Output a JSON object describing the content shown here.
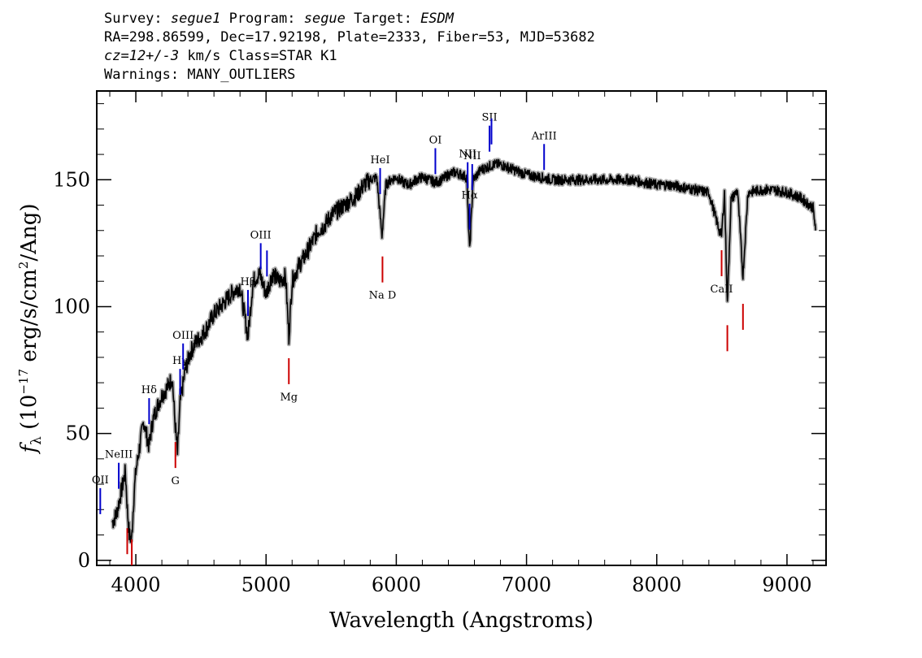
{
  "header": {
    "row1": {
      "survey_label": "Survey:",
      "survey": "segue1",
      "program_label": "Program:",
      "program": "segue",
      "target_label": "Target:",
      "target": "ESDM"
    },
    "row2": "RA=298.86599, Dec=17.92198, Plate=2333, Fiber=53, MJD=53682",
    "row3": {
      "cz": "cz=12+/-3",
      "rest": " km/s Class=STAR K1"
    },
    "row4": "Warnings: MANY_OUTLIERS"
  },
  "colors": {
    "spectrum": "#000000",
    "error_band": "#b0b0b0",
    "emission": "#0000cc",
    "absorption": "#cc0000"
  },
  "chart_data": {
    "type": "line",
    "xlabel": "Wavelength (Angstroms)",
    "ylabel_parts": {
      "f": "f",
      "lambda": "λ",
      "open": " (10",
      "exp": "−17",
      "mid": " erg/s/cm",
      "sq": "2",
      "close": "/Ang)"
    },
    "xlim": [
      3700,
      9300
    ],
    "ylim": [
      -2,
      185
    ],
    "x_ticks": [
      4000,
      5000,
      6000,
      7000,
      8000,
      9000
    ],
    "x_tick_labels": [
      "4000",
      "5000",
      "6000",
      "7000",
      "8000",
      "9000"
    ],
    "y_ticks": [
      0,
      50,
      100,
      150
    ],
    "y_tick_labels": [
      "0",
      "50",
      "100",
      "150"
    ],
    "spectrum": {
      "name": "",
      "x": [
        3820,
        3850,
        3880,
        3900,
        3920,
        3935,
        3950,
        3968,
        3985,
        4000,
        4030,
        4060,
        4101,
        4130,
        4160,
        4200,
        4240,
        4280,
        4300,
        4320,
        4340,
        4380,
        4420,
        4460,
        4500,
        4550,
        4600,
        4650,
        4700,
        4750,
        4800,
        4861,
        4900,
        4950,
        5000,
        5050,
        5100,
        5150,
        5175,
        5200,
        5250,
        5300,
        5350,
        5400,
        5450,
        5500,
        5550,
        5600,
        5650,
        5700,
        5750,
        5800,
        5850,
        5890,
        5920,
        5960,
        6000,
        6050,
        6100,
        6150,
        6200,
        6250,
        6300,
        6350,
        6400,
        6450,
        6500,
        6540,
        6563,
        6590,
        6650,
        6700,
        6750,
        6800,
        6850,
        6900,
        6950,
        7000,
        7100,
        7200,
        7300,
        7400,
        7500,
        7600,
        7700,
        7800,
        7900,
        8000,
        8100,
        8200,
        8300,
        8400,
        8480,
        8498,
        8520,
        8542,
        8570,
        8620,
        8662,
        8700,
        8800,
        8900,
        9000,
        9100,
        9150,
        9200,
        9220
      ],
      "y": [
        15,
        18,
        25,
        30,
        35,
        20,
        10,
        8,
        25,
        35,
        45,
        55,
        45,
        55,
        60,
        65,
        68,
        72,
        55,
        42,
        62,
        75,
        82,
        86,
        88,
        92,
        97,
        100,
        103,
        106,
        108,
        88,
        110,
        113,
        105,
        113,
        110,
        112,
        88,
        110,
        116,
        120,
        125,
        130,
        132,
        136,
        138,
        140,
        142,
        144,
        148,
        150,
        151,
        128,
        148,
        150,
        151,
        149,
        148,
        150,
        151,
        150,
        149,
        150,
        152,
        153,
        152,
        151,
        122,
        150,
        154,
        155,
        156,
        156,
        155,
        154,
        153,
        152,
        151,
        150,
        150,
        150,
        150,
        150,
        150,
        150,
        149,
        148,
        148,
        147,
        146,
        145,
        130,
        128,
        145,
        101,
        142,
        146,
        112,
        145,
        146,
        146,
        145,
        143,
        141,
        139,
        130
      ]
    },
    "lines": [
      {
        "label": "OII",
        "x": 3727,
        "kind": "emission"
      },
      {
        "label": "NeIII",
        "x": 3869,
        "kind": "emission"
      },
      {
        "label": "Hδ",
        "x": 4102,
        "kind": "emission"
      },
      {
        "label": "Hγ",
        "x": 4340,
        "kind": "emission"
      },
      {
        "label": "OIII",
        "x": 4363,
        "kind": "emission"
      },
      {
        "label": "Hβ",
        "x": 4861,
        "kind": "emission"
      },
      {
        "label": "OIII",
        "x": 4959,
        "kind": "emission"
      },
      {
        "label": "",
        "x": 5007,
        "kind": "emission"
      },
      {
        "label": "HeI",
        "x": 5876,
        "kind": "emission"
      },
      {
        "label": "OI",
        "x": 6300,
        "kind": "emission"
      },
      {
        "label": "NII",
        "x": 6548,
        "kind": "emission"
      },
      {
        "label": "Hα",
        "x": 6563,
        "kind": "emission"
      },
      {
        "label": "NII",
        "x": 6583,
        "kind": "emission"
      },
      {
        "label": "SII",
        "x": 6716,
        "kind": "emission"
      },
      {
        "label": "",
        "x": 6731,
        "kind": "emission"
      },
      {
        "label": "ArIII",
        "x": 7135,
        "kind": "emission"
      },
      {
        "label": "",
        "x": 3934,
        "kind": "absorption"
      },
      {
        "label": "",
        "x": 3969,
        "kind": "absorption"
      },
      {
        "label": "G",
        "x": 4304,
        "kind": "absorption"
      },
      {
        "label": "Mg",
        "x": 5175,
        "kind": "absorption"
      },
      {
        "label": "Na D",
        "x": 5894,
        "kind": "absorption"
      },
      {
        "label": "CaII",
        "x": 8498,
        "kind": "absorption"
      },
      {
        "label": "",
        "x": 8542,
        "kind": "absorption"
      },
      {
        "label": "",
        "x": 8662,
        "kind": "absorption"
      }
    ]
  }
}
